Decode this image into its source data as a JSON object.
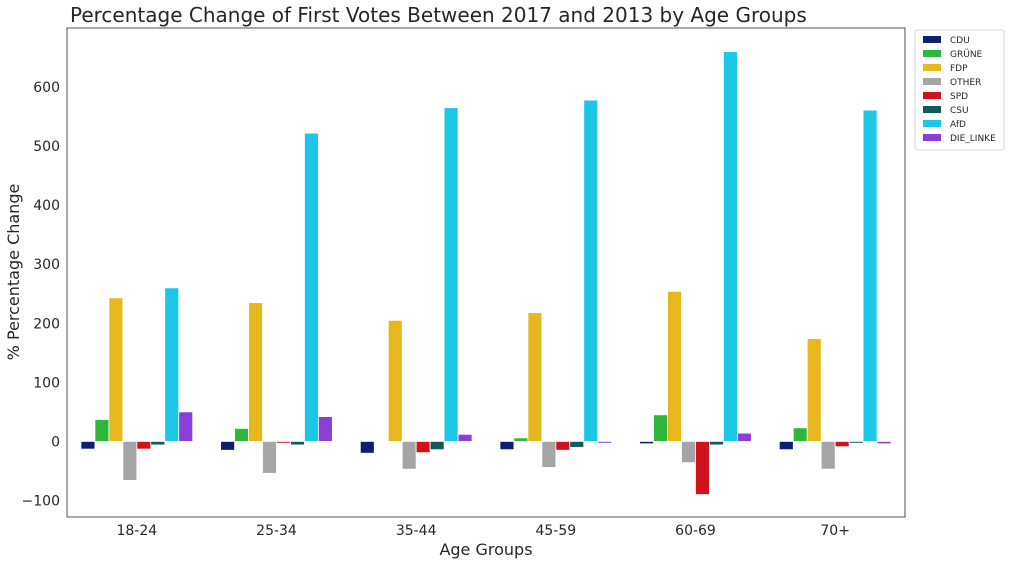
{
  "chart_data": {
    "type": "bar",
    "title": "Percentage Change of First Votes Between 2017 and 2013 by Age Groups",
    "xlabel": "Age Groups",
    "ylabel": "% Percentage Change",
    "categories": [
      "18-24",
      "25-34",
      "35-44",
      "45-59",
      "60-69",
      "70+"
    ],
    "ylim": [
      -128,
      700
    ],
    "yticks": [
      -100,
      0,
      100,
      200,
      300,
      400,
      500,
      600
    ],
    "ytick_labels": [
      "−100",
      "0",
      "100",
      "200",
      "300",
      "400",
      "500",
      "600"
    ],
    "grid": false,
    "legend_position": "outside-top-right",
    "series": [
      {
        "name": "CDU",
        "color": "#0d1f6e",
        "values": [
          -13,
          -15,
          -20,
          -14,
          -4,
          -14
        ]
      },
      {
        "name": "GRÜNE",
        "color": "#2eb83b",
        "values": [
          37,
          22,
          0,
          6,
          45,
          23
        ]
      },
      {
        "name": "FDP",
        "color": "#e6b81e",
        "values": [
          243,
          235,
          205,
          218,
          254,
          174
        ]
      },
      {
        "name": "OTHER",
        "color": "#a5a5a5",
        "values": [
          -66,
          -54,
          -47,
          -44,
          -36,
          -47
        ]
      },
      {
        "name": "SPD",
        "color": "#d0121c",
        "values": [
          -13,
          -3,
          -19,
          -15,
          -90,
          -9
        ]
      },
      {
        "name": "CSU",
        "color": "#0e5a5c",
        "values": [
          -6,
          -6,
          -14,
          -10,
          -6,
          -3
        ]
      },
      {
        "name": "AfD",
        "color": "#1cc6e6",
        "values": [
          260,
          522,
          565,
          578,
          660,
          561
        ]
      },
      {
        "name": "DIE_LINKE",
        "color": "#8a3fd6",
        "values": [
          50,
          42,
          12,
          -3,
          14,
          -4
        ]
      }
    ]
  }
}
